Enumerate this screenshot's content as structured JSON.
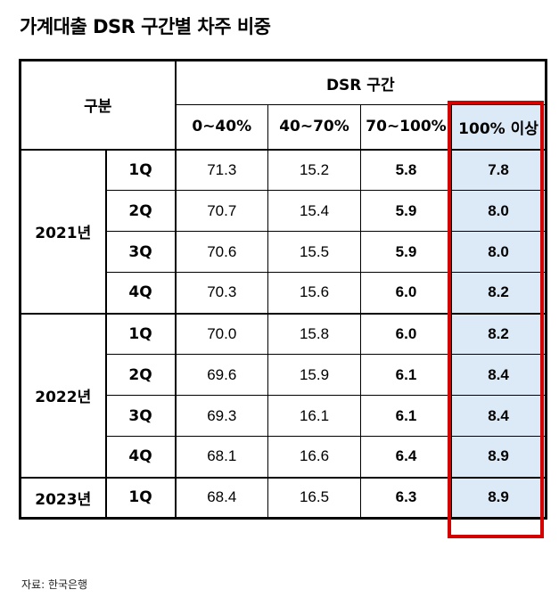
{
  "title": "가계대출 DSR 구간별 차주 비중",
  "source": "자료: 한국은행",
  "header": {
    "group_label": "구분",
    "dsr_label": "DSR 구간",
    "columns": [
      "0~40%",
      "40~70%",
      "70~100%",
      "100% 이상"
    ]
  },
  "groups": [
    {
      "year": "2021년",
      "rows": [
        {
          "quarter": "1Q",
          "values": [
            "71.3",
            "15.2",
            "5.8",
            "7.8"
          ]
        },
        {
          "quarter": "2Q",
          "values": [
            "70.7",
            "15.4",
            "5.9",
            "8.0"
          ]
        },
        {
          "quarter": "3Q",
          "values": [
            "70.6",
            "15.5",
            "5.9",
            "8.0"
          ]
        },
        {
          "quarter": "4Q",
          "values": [
            "70.3",
            "15.6",
            "6.0",
            "8.2"
          ]
        }
      ]
    },
    {
      "year": "2022년",
      "rows": [
        {
          "quarter": "1Q",
          "values": [
            "70.0",
            "15.8",
            "6.0",
            "8.2"
          ]
        },
        {
          "quarter": "2Q",
          "values": [
            "69.6",
            "15.9",
            "6.1",
            "8.4"
          ]
        },
        {
          "quarter": "3Q",
          "values": [
            "69.3",
            "16.1",
            "6.1",
            "8.4"
          ]
        },
        {
          "quarter": "4Q",
          "values": [
            "68.1",
            "16.6",
            "6.4",
            "8.9"
          ]
        }
      ]
    },
    {
      "year": "2023년",
      "rows": [
        {
          "quarter": "1Q",
          "values": [
            "68.4",
            "16.5",
            "6.3",
            "8.9"
          ]
        }
      ]
    }
  ],
  "colors": {
    "highlight_fill": "#dce9f6",
    "highlight_border": "#d40000"
  }
}
